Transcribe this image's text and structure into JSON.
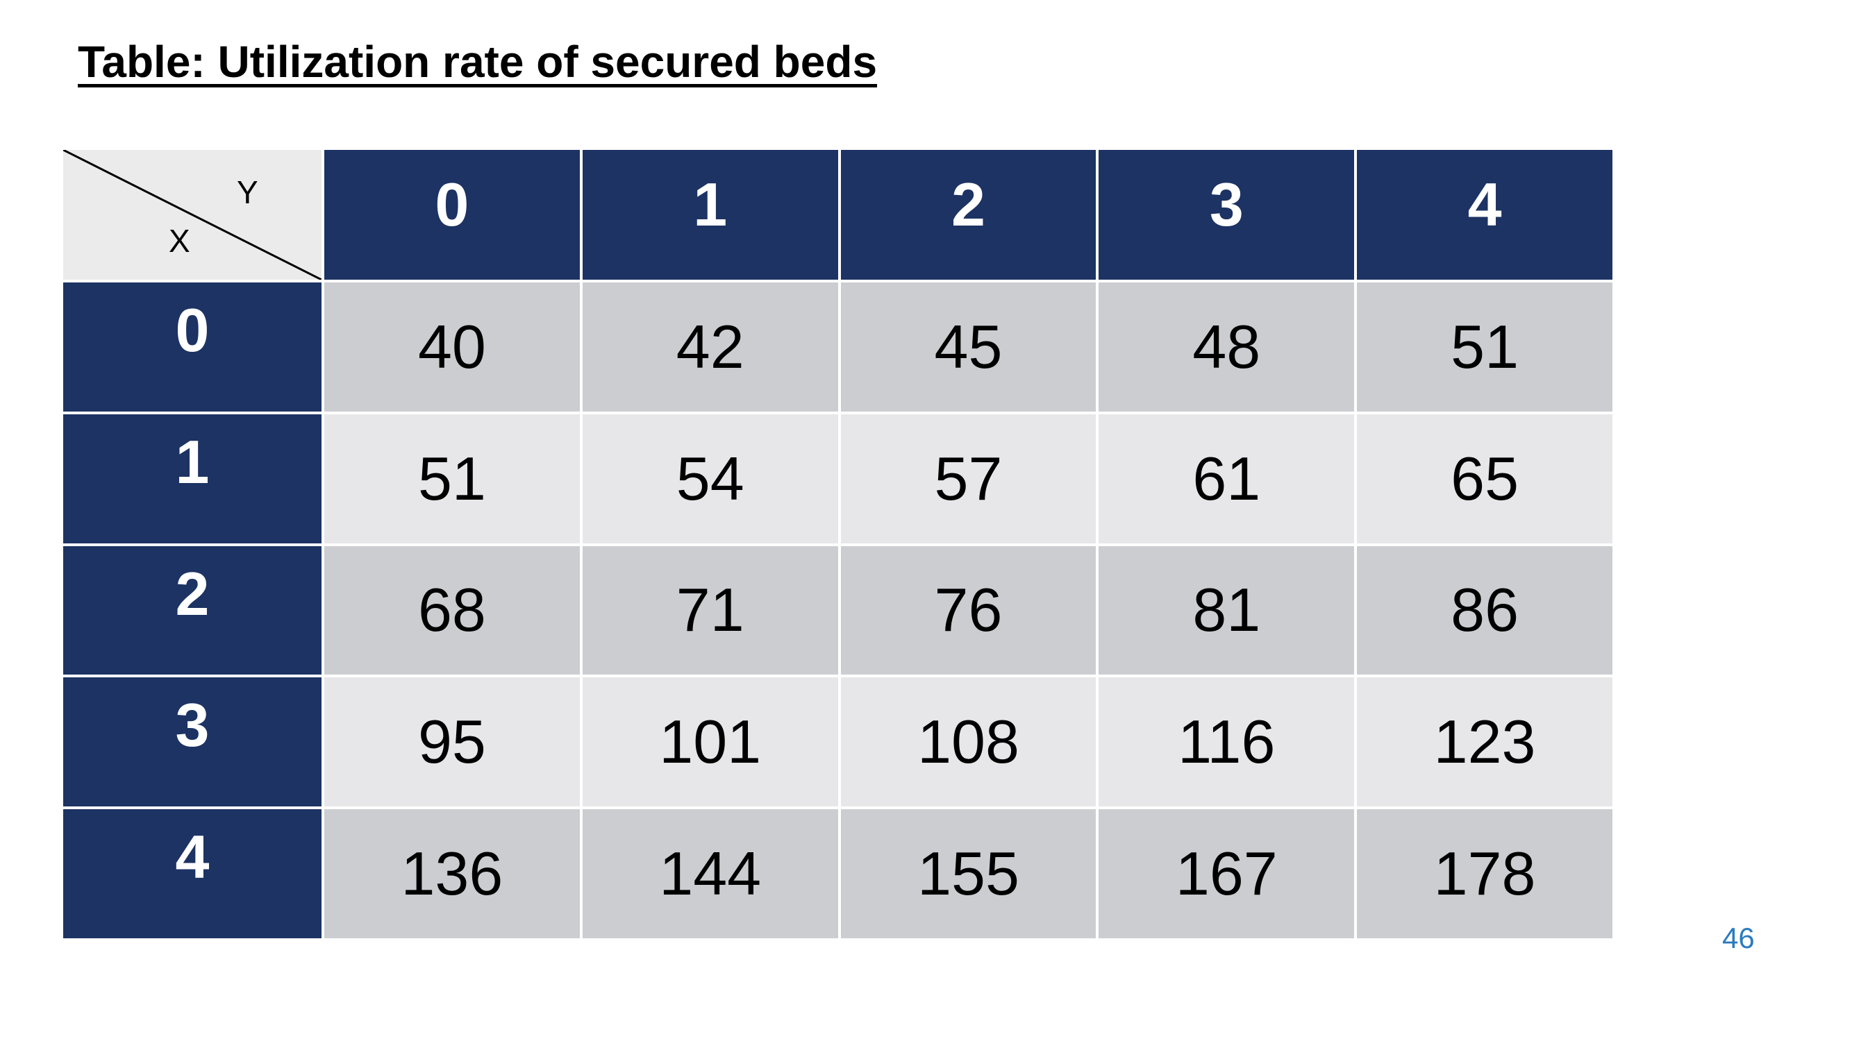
{
  "title": "Table: Utilization rate of secured beds",
  "table": {
    "corner": {
      "y_label": "Y",
      "x_label": "X"
    },
    "column_headers": [
      "0",
      "1",
      "2",
      "3",
      "4"
    ],
    "rows": [
      {
        "header": "0",
        "values": [
          "40",
          "42",
          "45",
          "48",
          "51"
        ]
      },
      {
        "header": "1",
        "values": [
          "51",
          "54",
          "57",
          "61",
          "65"
        ]
      },
      {
        "header": "2",
        "values": [
          "68",
          "71",
          "76",
          "81",
          "86"
        ]
      },
      {
        "header": "3",
        "values": [
          "95",
          "101",
          "108",
          "116",
          "123"
        ]
      },
      {
        "header": "4",
        "values": [
          "136",
          "144",
          "155",
          "167",
          "178"
        ]
      }
    ]
  },
  "page_number": "46",
  "colors": {
    "header_bg": "#1c3363",
    "header_text": "#ffffff",
    "row_even_bg": "#cbcdd1",
    "row_odd_bg": "#e7e7ea",
    "corner_bg": "#ebebeb",
    "page_number": "#2b7bbf"
  }
}
